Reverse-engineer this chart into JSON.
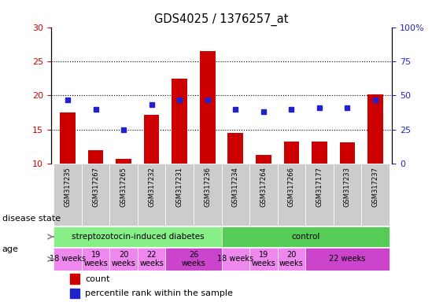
{
  "title": "GDS4025 / 1376257_at",
  "samples": [
    "GSM317235",
    "GSM317267",
    "GSM317265",
    "GSM317232",
    "GSM317231",
    "GSM317236",
    "GSM317234",
    "GSM317264",
    "GSM317266",
    "GSM317177",
    "GSM317233",
    "GSM317237"
  ],
  "counts": [
    17.5,
    12.0,
    10.7,
    17.2,
    22.5,
    26.5,
    14.5,
    11.3,
    13.2,
    13.2,
    13.1,
    20.1
  ],
  "percentiles": [
    47,
    40,
    25,
    43,
    47,
    47,
    40,
    38,
    40,
    41,
    41,
    47
  ],
  "ylim_left": [
    10,
    30
  ],
  "ylim_right": [
    0,
    100
  ],
  "left_ticks": [
    10,
    15,
    20,
    25,
    30
  ],
  "right_ticks": [
    0,
    25,
    50,
    75,
    100
  ],
  "bar_color": "#cc0000",
  "dot_color": "#2222cc",
  "bg_color": "#ffffff",
  "sample_band_color": "#cccccc",
  "disease_state_groups": [
    {
      "label": "streptozotocin-induced diabetes",
      "start": 0,
      "end": 6,
      "color": "#88ee88"
    },
    {
      "label": "control",
      "start": 6,
      "end": 12,
      "color": "#55cc55"
    }
  ],
  "age_groups": [
    {
      "label": "18 weeks",
      "start": 0,
      "end": 1,
      "color": "#ee88ee"
    },
    {
      "label": "19\nweeks",
      "start": 1,
      "end": 2,
      "color": "#ee88ee"
    },
    {
      "label": "20\nweeks",
      "start": 2,
      "end": 3,
      "color": "#ee88ee"
    },
    {
      "label": "22\nweeks",
      "start": 3,
      "end": 4,
      "color": "#ee88ee"
    },
    {
      "label": "26\nweeks",
      "start": 4,
      "end": 6,
      "color": "#cc44cc"
    },
    {
      "label": "18 weeks",
      "start": 6,
      "end": 7,
      "color": "#ee88ee"
    },
    {
      "label": "19\nweeks",
      "start": 7,
      "end": 8,
      "color": "#ee88ee"
    },
    {
      "label": "20\nweeks",
      "start": 8,
      "end": 9,
      "color": "#ee88ee"
    },
    {
      "label": "22 weeks",
      "start": 9,
      "end": 12,
      "color": "#cc44cc"
    }
  ],
  "left_tick_color": "#cc0000",
  "right_tick_color": "#2222cc",
  "bar_width": 0.55
}
